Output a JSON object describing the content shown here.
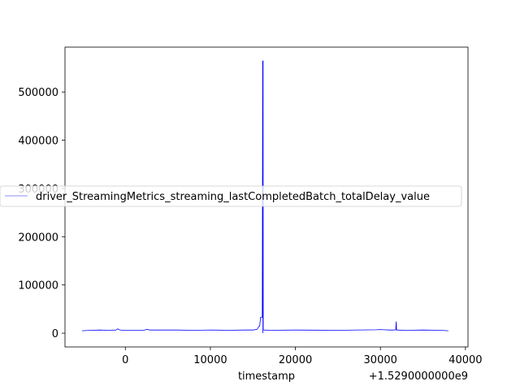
{
  "chart_data": {
    "type": "line",
    "title": "",
    "xlabel": "timestamp",
    "ylabel": "",
    "x_offset_label": "+1.5290000000e9",
    "xlim": [
      -7100,
      40300
    ],
    "ylim": [
      -28500,
      593000
    ],
    "xticks": [
      0,
      10000,
      20000,
      30000,
      40000
    ],
    "xtick_labels": [
      "0",
      "10000",
      "20000",
      "30000",
      "40000"
    ],
    "yticks": [
      0,
      100000,
      200000,
      300000,
      400000,
      500000
    ],
    "ytick_labels": [
      "0",
      "100000",
      "200000",
      "300000",
      "400000",
      "500000"
    ],
    "grid": false,
    "legend_position": "center-left",
    "series": [
      {
        "name": "driver_StreamingMetrics_streaming_lastCompletedBatch_totalDelay_value",
        "color": "#0000ff",
        "x": [
          -5100,
          -4000,
          -3000,
          -2000,
          -1100,
          -900,
          -700,
          -400,
          0,
          1000,
          2200,
          2500,
          2900,
          4000,
          6000,
          8000,
          10000,
          12000,
          14000,
          15000,
          15500,
          15700,
          15800,
          15900,
          16100,
          16150,
          16180,
          16200,
          16220,
          16300,
          17000,
          20000,
          25000,
          29500,
          30000,
          30500,
          31000,
          31500,
          31800,
          31850,
          31900,
          32000,
          33000,
          35000,
          37000,
          38000
        ],
        "y": [
          5000,
          6000,
          6500,
          6000,
          6500,
          9000,
          7000,
          6000,
          6000,
          6000,
          6000,
          8000,
          6500,
          6500,
          6500,
          6000,
          6500,
          6000,
          6500,
          6500,
          8000,
          14000,
          15000,
          33000,
          33000,
          565000,
          0,
          565000,
          7000,
          6500,
          6000,
          6500,
          6000,
          7000,
          7500,
          7000,
          6500,
          6500,
          7000,
          24000,
          6500,
          6500,
          6000,
          6500,
          6000,
          5000
        ]
      }
    ]
  }
}
